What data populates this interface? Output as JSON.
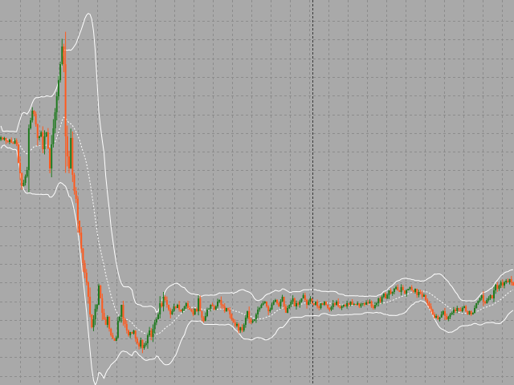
{
  "colors": {
    "background": "#a9a9a9",
    "grid": "#8c8c8c",
    "bull": "#1f7a1f",
    "bear": "#ff5a1e",
    "bands": "#ffffff",
    "cursor": "#3a3a3a"
  },
  "chart_data": {
    "type": "candlestick",
    "grid": true,
    "indicator": "bollinger-bands",
    "cursor_index": 178,
    "close": [
      171,
      174,
      172,
      176,
      177,
      174,
      178,
      179,
      175,
      180,
      203,
      216,
      232,
      228,
      220,
      212,
      160,
      150,
      138,
      142,
      155,
      172,
      170,
      165,
      186,
      170,
      165,
      185,
      210,
      180,
      160,
      140,
      120,
      100,
      80,
      58,
      80,
      170,
      195,
      210,
      172,
      218,
      238,
      248,
      275,
      290,
      310,
      328,
      340,
      352,
      370,
      392,
      408,
      398,
      385,
      380,
      356,
      372,
      390,
      398,
      405,
      395,
      410,
      418,
      422,
      425,
      421,
      400,
      395,
      380,
      398,
      404,
      412,
      418,
      414,
      416,
      412,
      422,
      428,
      432,
      424,
      434,
      430,
      428,
      418,
      412,
      420,
      410,
      402,
      398,
      392,
      378,
      382,
      370,
      374,
      380,
      386,
      392,
      388,
      382,
      384,
      380,
      386,
      388,
      385,
      382,
      378,
      384,
      386,
      388,
      392,
      385,
      388,
      372,
      388,
      396,
      400,
      394,
      386,
      385,
      380,
      382,
      386,
      382,
      376,
      374,
      380,
      382,
      388,
      384,
      386,
      392,
      398,
      402,
      406,
      404,
      412,
      408,
      412,
      405,
      396,
      388,
      398,
      402,
      400,
      398,
      392,
      386,
      384,
      380,
      378,
      376,
      382,
      388,
      386,
      380,
      376,
      374,
      378,
      382,
      376,
      370,
      382,
      390,
      384,
      380,
      376,
      372,
      382,
      378,
      380,
      376,
      372,
      368,
      374,
      380,
      376,
      372,
      378,
      380,
      376,
      382,
      384,
      378,
      380,
      376,
      380,
      384,
      386,
      383,
      378,
      380,
      376,
      382,
      384,
      382,
      380,
      382,
      378,
      380,
      376,
      380,
      379,
      380,
      378,
      382,
      379,
      378,
      380,
      377,
      378,
      376,
      382,
      384,
      380,
      378,
      372,
      376,
      370,
      366,
      372,
      368,
      362,
      366,
      364,
      360,
      358,
      362,
      364,
      358,
      362,
      366,
      362,
      360,
      358,
      362,
      364,
      360,
      368,
      364,
      366,
      370,
      368,
      374,
      378,
      382,
      386,
      392,
      396,
      394,
      398,
      396,
      392,
      388,
      394,
      398,
      395,
      392,
      390,
      386,
      388,
      384,
      386,
      388,
      384,
      382,
      388,
      392,
      388,
      392,
      390,
      384,
      378,
      375,
      372,
      368,
      376,
      378,
      374,
      372,
      368,
      372,
      362,
      355,
      360,
      356,
      352,
      356,
      352,
      350,
      352,
      348,
      352,
      356
    ]
  }
}
